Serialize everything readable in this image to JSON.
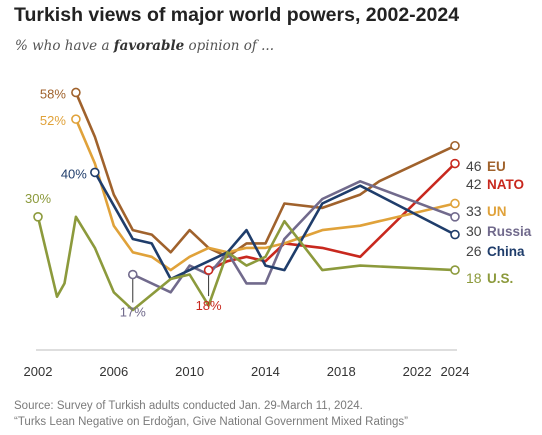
{
  "title": "Turkish views of major world powers, 2002-2024",
  "subtitle": {
    "before": "% who have a ",
    "emphasis": "favorable",
    "after": " opinion of ..."
  },
  "source_line1": "Source: Survey of Turkish adults conducted Jan. 29-March 11, 2024.",
  "source_line2": "“Turks Lean Negative on Erdoğan, Give National Government Mixed Ratings”",
  "chart_data": {
    "type": "line",
    "title": "Turkish views of major world powers, 2002-2024",
    "xlim": [
      2002,
      2024
    ],
    "ylim": [
      0,
      65
    ],
    "x_ticks": [
      "2002",
      "2006",
      "2010",
      "2014",
      "2018",
      "2022",
      "2024"
    ],
    "series": [
      {
        "name": "EU",
        "color": "#a0622c",
        "label_color": "#a0622c",
        "x": [
          2004,
          2005,
          2006,
          2007,
          2008,
          2009,
          2010,
          2011,
          2012,
          2013,
          2014,
          2015,
          2017,
          2019,
          2020,
          2024
        ],
        "y": [
          58,
          48,
          35,
          27,
          26,
          22,
          27,
          23,
          21,
          24,
          24,
          33,
          32,
          35,
          38,
          46
        ],
        "start_label": "58%",
        "end_label": "46",
        "end_label_color": "#444444"
      },
      {
        "name": "NATO",
        "color": "#c8281e",
        "label_color": "#c8281e",
        "x": [
          2011,
          2012,
          2013,
          2014,
          2015,
          2017,
          2019,
          2024
        ],
        "y": [
          18,
          20,
          21,
          20,
          24,
          23,
          21,
          42
        ],
        "start_label": "18%",
        "end_label": "42",
        "end_label_color": "#444444"
      },
      {
        "name": "UN",
        "color": "#e0a23a",
        "label_color": "#e0a23a",
        "x": [
          2004,
          2005,
          2006,
          2007,
          2008,
          2009,
          2010,
          2011,
          2012,
          2013,
          2014,
          2015,
          2017,
          2019,
          2020,
          2024
        ],
        "y": [
          52,
          42,
          28,
          22,
          21,
          18,
          21,
          23,
          22,
          23,
          23,
          24,
          27,
          28,
          29,
          33
        ],
        "start_label": "52%",
        "end_label": "33",
        "end_label_color": "#444444"
      },
      {
        "name": "Russia",
        "color": "#716a8c",
        "label_color": "#716a8c",
        "x": [
          2007,
          2009,
          2010,
          2011,
          2012,
          2013,
          2014,
          2015,
          2017,
          2019,
          2024
        ],
        "y": [
          17,
          13,
          19,
          17,
          22,
          15,
          15,
          25,
          34,
          38,
          30
        ],
        "start_label": "17%",
        "end_label": "30",
        "end_label_color": "#444444"
      },
      {
        "name": "China",
        "color": "#1f3d6b",
        "label_color": "#1f3d6b",
        "x": [
          2005,
          2007,
          2008,
          2009,
          2010,
          2011,
          2012,
          2013,
          2014,
          2015,
          2017,
          2019,
          2024
        ],
        "y": [
          40,
          25,
          24,
          16,
          18,
          20,
          22,
          27,
          19,
          18,
          33,
          37,
          26
        ],
        "start_label": "40%",
        "end_label": "26",
        "end_label_color": "#444444"
      },
      {
        "name": "U.S.",
        "color": "#8c9a3c",
        "label_color": "#8c9a3c",
        "x": [
          2002,
          2003,
          2003.4,
          2004,
          2005,
          2006,
          2007,
          2009,
          2010,
          2011,
          2012,
          2013,
          2014,
          2015,
          2017,
          2019,
          2024
        ],
        "y": [
          30,
          12,
          15,
          30,
          23,
          13,
          9,
          16,
          17,
          10,
          22,
          19,
          21,
          29,
          18,
          19,
          18
        ],
        "start_label": "30%",
        "end_label": "18",
        "end_label_color": "#8c9a3c"
      }
    ]
  }
}
